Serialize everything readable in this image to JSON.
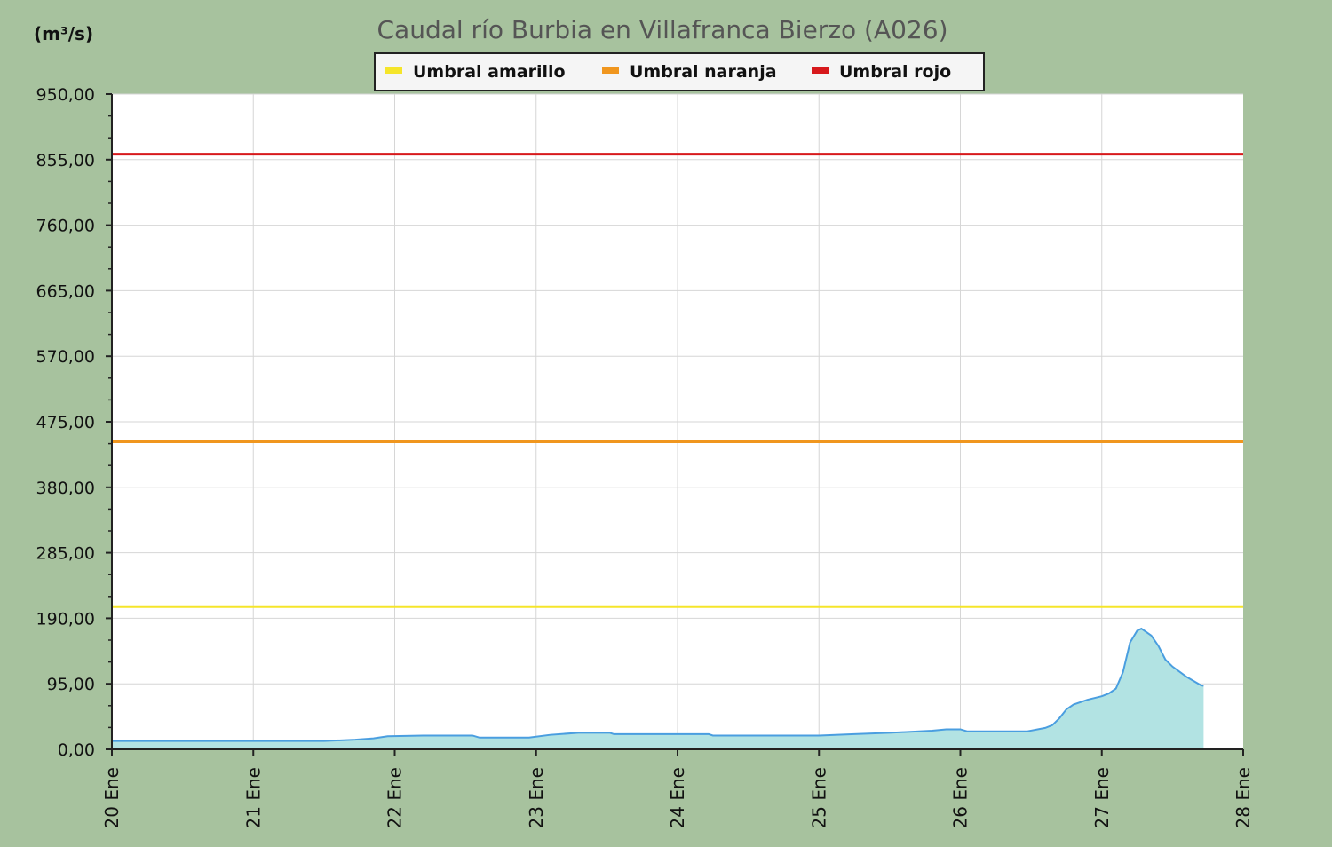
{
  "chart_data": {
    "type": "area",
    "title": "Caudal río Burbia en Villafranca Bierzo  (A026)",
    "ylabel": "(m³/s)",
    "xlabel": "",
    "ylim": [
      0,
      950
    ],
    "xlim": [
      20,
      28
    ],
    "yticks": [
      0,
      95,
      190,
      285,
      380,
      475,
      570,
      665,
      760,
      855,
      950
    ],
    "ytick_labels": [
      "0,00",
      "95,00",
      "190,00",
      "285,00",
      "380,00",
      "475,00",
      "570,00",
      "665,00",
      "760,00",
      "855,00",
      "950,00"
    ],
    "xticks": [
      20,
      21,
      22,
      23,
      24,
      25,
      26,
      27,
      28
    ],
    "xtick_labels": [
      "20 Ene",
      "21 Ene",
      "22 Ene",
      "23 Ene",
      "24 Ene",
      "25 Ene",
      "26 Ene",
      "27 Ene",
      "28 Ene"
    ],
    "grid": true,
    "legend": {
      "position": "top-center",
      "entries": [
        {
          "label": "Umbral amarillo",
          "color": "#f5e52a"
        },
        {
          "label": "Umbral naranja",
          "color": "#f0961e"
        },
        {
          "label": "Umbral rojo",
          "color": "#d7191c"
        }
      ]
    },
    "thresholds": [
      {
        "name": "Umbral amarillo",
        "value": 207,
        "color": "#f5e52a"
      },
      {
        "name": "Umbral naranja",
        "value": 446,
        "color": "#f0961e"
      },
      {
        "name": "Umbral rojo",
        "value": 863,
        "color": "#d7191c"
      }
    ],
    "series": [
      {
        "color": "#4a9ee0",
        "fill": "#b2e3e3",
        "x": [
          20.0,
          20.5,
          21.0,
          21.5,
          21.72,
          21.85,
          21.95,
          22.2,
          22.55,
          22.6,
          22.95,
          23.1,
          23.3,
          23.52,
          23.55,
          24.0,
          24.22,
          24.25,
          24.5,
          25.0,
          25.25,
          25.5,
          25.6,
          25.8,
          25.9,
          26.0,
          26.05,
          26.1,
          26.3,
          26.47,
          26.6,
          26.65,
          26.7,
          26.75,
          26.8,
          26.9,
          27.0,
          27.05,
          27.1,
          27.15,
          27.2,
          27.25,
          27.28,
          27.35,
          27.4,
          27.45,
          27.5,
          27.6,
          27.7,
          27.72
        ],
        "y": [
          12,
          12,
          12,
          12,
          14,
          16,
          19,
          20,
          20,
          17,
          17,
          21,
          24,
          24,
          22,
          22,
          22,
          20,
          20,
          20,
          22,
          24,
          25,
          27,
          29,
          29,
          26,
          26,
          26,
          26,
          31,
          35,
          45,
          58,
          65,
          72,
          77,
          81,
          88,
          112,
          155,
          172,
          175,
          165,
          150,
          130,
          120,
          105,
          93,
          92
        ]
      }
    ]
  }
}
